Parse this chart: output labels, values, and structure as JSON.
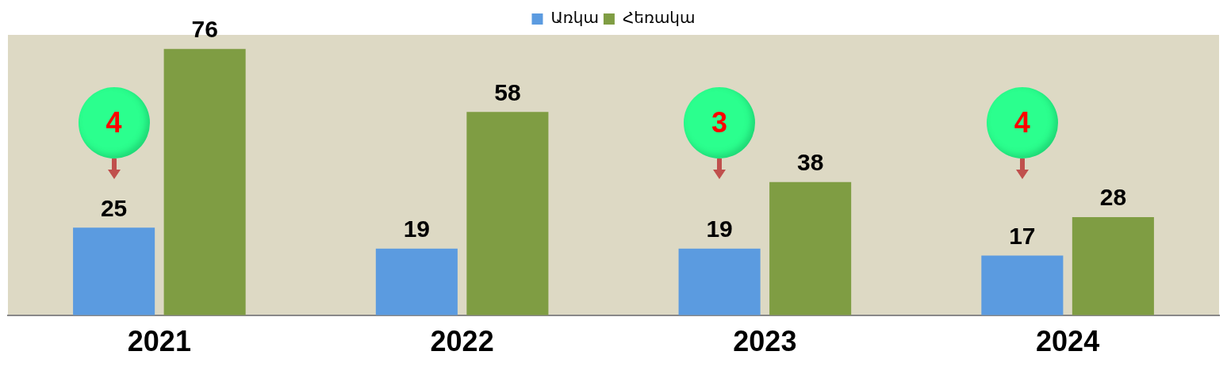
{
  "chart_data": {
    "type": "bar",
    "categories": [
      "2021",
      "2022",
      "2023",
      "2024"
    ],
    "series": [
      {
        "name": "Առկա",
        "color": "#5b9be0",
        "values": [
          25,
          19,
          19,
          17
        ]
      },
      {
        "name": "Հեռակա",
        "color": "#7f9d43",
        "values": [
          76,
          58,
          38,
          28
        ]
      }
    ],
    "data_labels": true,
    "legend": "top",
    "annotations": [
      "4",
      "3",
      "4"
    ]
  }
}
